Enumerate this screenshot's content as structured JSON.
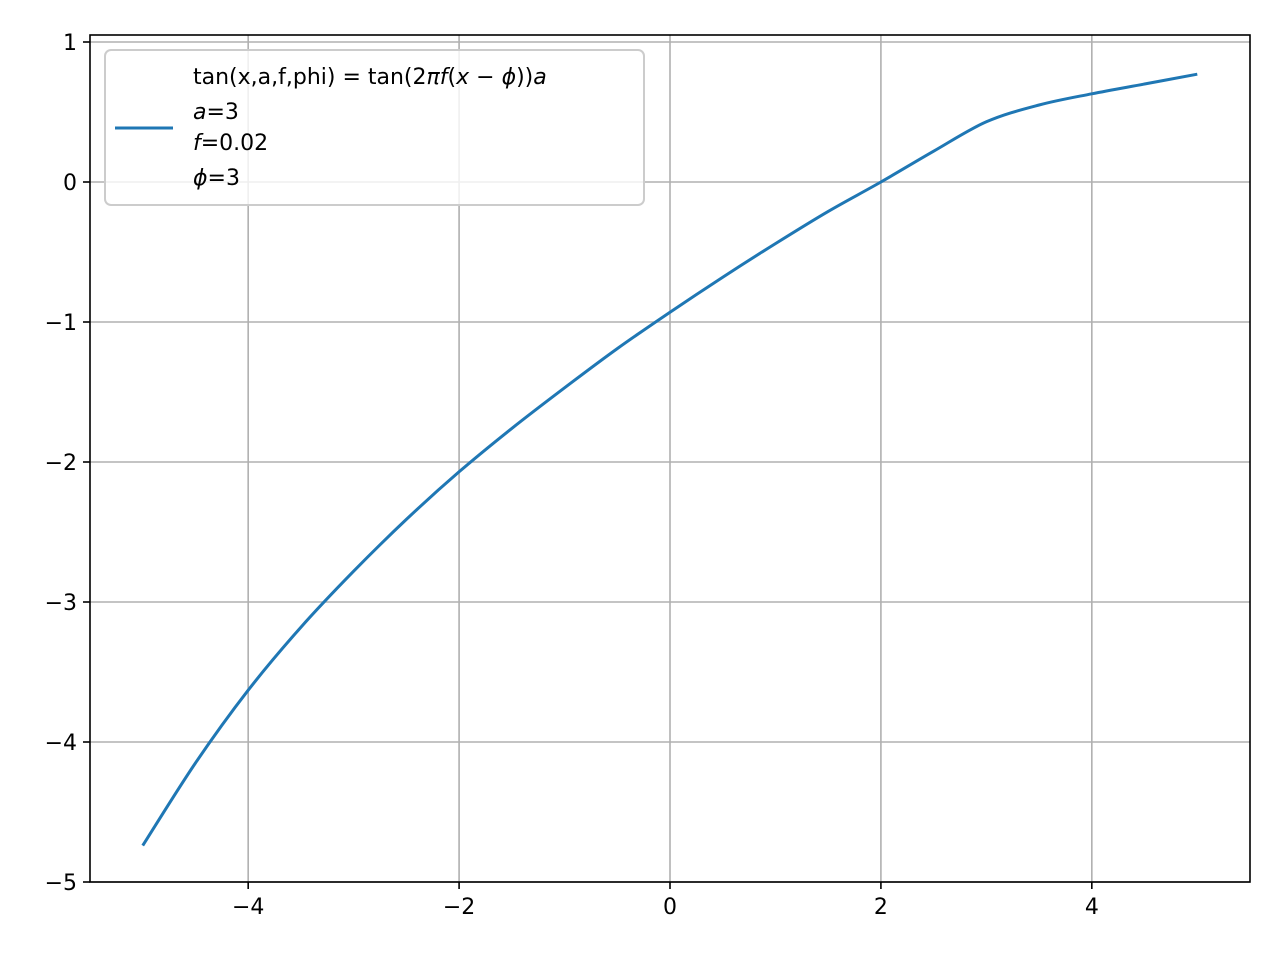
{
  "chart_data": {
    "type": "line",
    "title": "",
    "xlabel": "",
    "ylabel": "",
    "xlim": [
      -5.5,
      5.5
    ],
    "ylim": [
      -5,
      1.05
    ],
    "xticks": [
      -4,
      -2,
      0,
      2,
      4
    ],
    "yticks": [
      -5,
      -4,
      -3,
      -2,
      -1,
      0,
      1
    ],
    "xtick_labels": [
      "−4",
      "−2",
      "0",
      "2",
      "4"
    ],
    "ytick_labels": [
      "−5",
      "−4",
      "−3",
      "−2",
      "−1",
      "0",
      "1"
    ],
    "grid": true,
    "legend_position": "upper-left",
    "series": [
      {
        "name": "tan(x,a,f,phi) = tan(2πf(x − ϕ))a",
        "color": "#1f77b4",
        "x": [
          -5.0,
          -4.5,
          -4.0,
          -3.5,
          -3.0,
          -2.5,
          -2.0,
          -1.5,
          -1.0,
          -0.5,
          0.0,
          0.5,
          1.0,
          1.5,
          2.0,
          2.5,
          3.0,
          3.5,
          4.0,
          4.5,
          5.0
        ],
        "y": [
          -4.74,
          -4.15,
          -3.63,
          -3.18,
          -2.78,
          -2.41,
          -2.07,
          -1.76,
          -1.47,
          -1.19,
          -0.93,
          -0.68,
          -0.44,
          -0.21,
          0.0,
          0.22,
          0.43,
          0.55,
          0.63,
          0.7,
          0.77
        ]
      }
    ],
    "legend_lines": {
      "line1_prefix": "tan(x,a,f,phi) = tan(2",
      "line1_pi": "π",
      "line1_f": "f",
      "line1_open": "(",
      "line1_x": "x",
      "line1_minus": " − ",
      "line1_phi": "ϕ",
      "line1_close": "))",
      "line1_a": "a",
      "line2_var": "a",
      "line2_val": "=3",
      "line3_var": "f",
      "line3_val": "=0.02",
      "line4_var": "ϕ",
      "line4_val": "=3"
    }
  }
}
